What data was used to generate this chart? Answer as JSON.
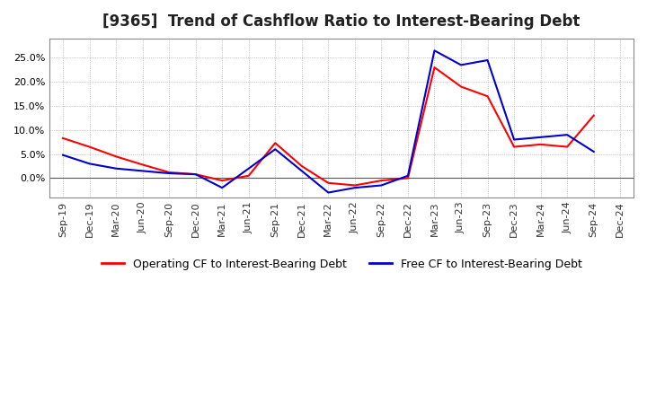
{
  "title": "[9365]  Trend of Cashflow Ratio to Interest-Bearing Debt",
  "x_labels": [
    "Sep-19",
    "Dec-19",
    "Mar-20",
    "Jun-20",
    "Sep-20",
    "Dec-20",
    "Mar-21",
    "Jun-21",
    "Sep-21",
    "Dec-21",
    "Mar-22",
    "Jun-22",
    "Sep-22",
    "Dec-22",
    "Mar-23",
    "Jun-23",
    "Sep-23",
    "Dec-23",
    "Mar-24",
    "Jun-24",
    "Sep-24",
    "Dec-24"
  ],
  "operating_cf": [
    0.083,
    0.065,
    0.045,
    0.028,
    0.012,
    0.008,
    -0.005,
    0.005,
    0.073,
    0.025,
    -0.01,
    -0.015,
    -0.005,
    0.0,
    0.23,
    0.19,
    0.17,
    0.065,
    0.07,
    0.065,
    0.13,
    null
  ],
  "free_cf": [
    0.048,
    0.03,
    0.02,
    0.015,
    0.01,
    0.008,
    -0.02,
    0.02,
    0.06,
    0.015,
    -0.03,
    -0.02,
    -0.015,
    0.005,
    0.265,
    0.235,
    0.245,
    0.08,
    0.085,
    0.09,
    0.055,
    null
  ],
  "operating_color": "#ff0000",
  "free_color": "#0000cc",
  "background_color": "#ffffff",
  "grid_color": "#aaaaaa",
  "ylim": [
    -0.04,
    0.29
  ],
  "yticks": [
    0.0,
    0.05,
    0.1,
    0.15,
    0.2,
    0.25
  ],
  "legend_labels": [
    "Operating CF to Interest-Bearing Debt",
    "Free CF to Interest-Bearing Debt"
  ],
  "title_fontsize": 12,
  "tick_fontsize": 8,
  "legend_fontsize": 9
}
